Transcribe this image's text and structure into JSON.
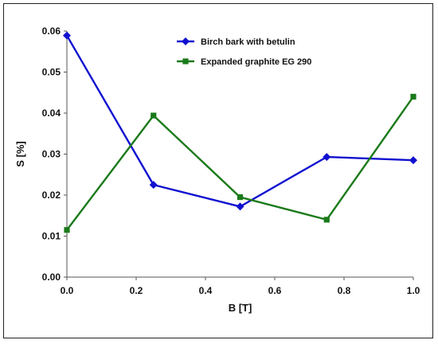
{
  "chart_data": {
    "type": "line",
    "title": "",
    "xlabel": "B [T]",
    "ylabel": "S [%]",
    "xlim": [
      0.0,
      1.0
    ],
    "ylim": [
      0.0,
      0.06
    ],
    "x_ticks": [
      "0.0",
      "0.2",
      "0.4",
      "0.6",
      "0.8",
      "1.0"
    ],
    "y_ticks": [
      "0.00",
      "0.01",
      "0.02",
      "0.03",
      "0.04",
      "0.05",
      "0.06"
    ],
    "grid": false,
    "legend_position": "top-center",
    "series": [
      {
        "name": "Birch bark with betulin",
        "color": "#1010d0",
        "marker": "diamond",
        "x": [
          0.0,
          0.25,
          0.5,
          0.75,
          1.0
        ],
        "y": [
          0.0589,
          0.0225,
          0.0172,
          0.0293,
          0.0285
        ]
      },
      {
        "name": "Expanded graphite EG 290",
        "color": "#1a7a1a",
        "marker": "square",
        "x": [
          0.0,
          0.25,
          0.5,
          0.75,
          1.0
        ],
        "y": [
          0.0115,
          0.0394,
          0.0195,
          0.014,
          0.044
        ]
      }
    ]
  }
}
